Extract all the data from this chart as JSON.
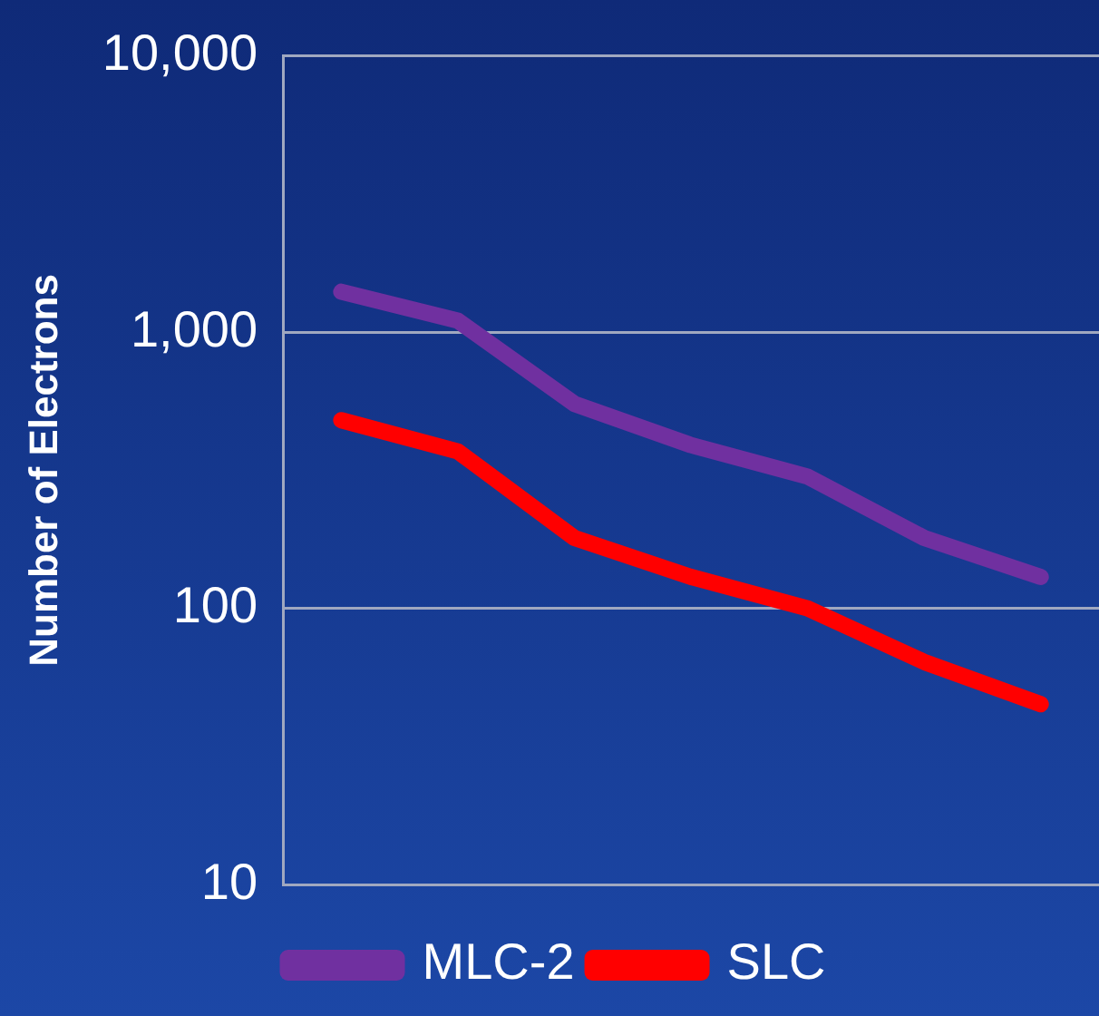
{
  "chart_data": {
    "type": "line",
    "ylabel": "Number of Electrons",
    "categories": [
      null,
      null,
      null,
      null,
      null,
      null,
      null
    ],
    "series": [
      {
        "name": "MLC-2",
        "color": "#7030a0",
        "values": [
          1400,
          1100,
          550,
          390,
          300,
          180,
          130
        ]
      },
      {
        "name": "SLC",
        "color": "#ff0000",
        "values": [
          480,
          370,
          180,
          130,
          100,
          64,
          45
        ]
      }
    ],
    "log": "y",
    "ylim": [
      10,
      10000
    ],
    "yticks": [
      10,
      100,
      {
        "value": 1000,
        "label": "1,000"
      },
      {
        "value": 10000,
        "label": "10,000"
      }
    ],
    "grid": "y",
    "legend": "bottom",
    "marker": "none",
    "line_style": "solid"
  }
}
